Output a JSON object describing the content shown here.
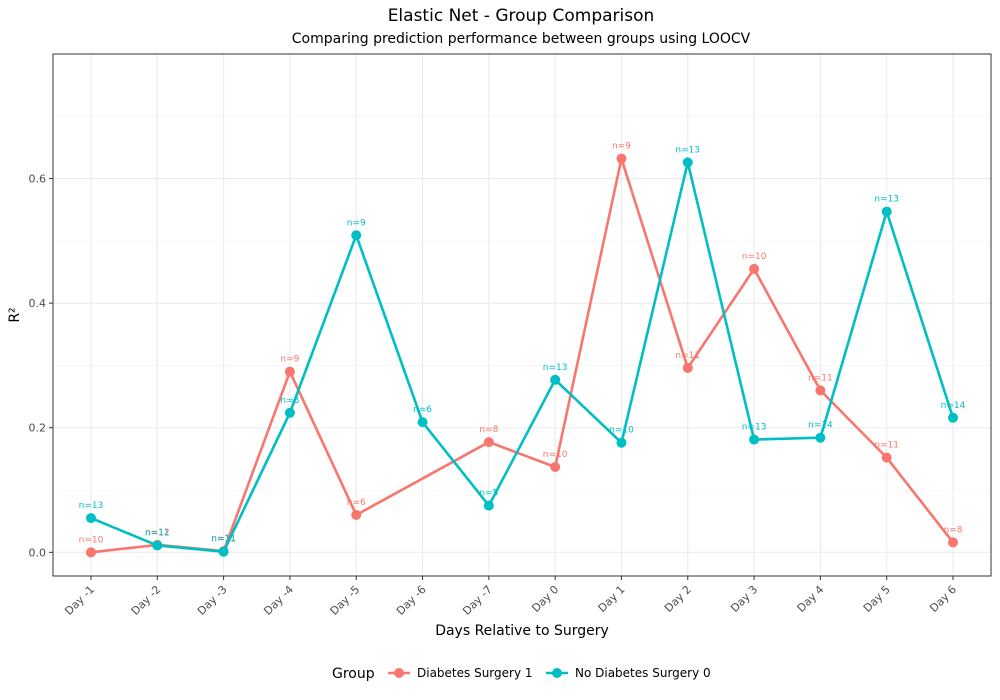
{
  "chart_data": {
    "type": "line",
    "title": "Elastic Net - Group Comparison",
    "subtitle": "Comparing prediction performance between groups using LOOCV",
    "xlabel": "Days Relative to Surgery",
    "ylabel": "R²",
    "categories": [
      "Day -1",
      "Day -2",
      "Day -3",
      "Day -4",
      "Day -5",
      "Day -6",
      "Day -7",
      "Day 0",
      "Day 1",
      "Day 2",
      "Day 3",
      "Day 4",
      "Day 5",
      "Day 6"
    ],
    "ylim": [
      -0.038,
      0.8
    ],
    "yticks": [
      0.0,
      0.2,
      0.4,
      0.6
    ],
    "ytick_labels": [
      "0.0",
      "0.2",
      "0.4",
      "0.6"
    ],
    "grid": true,
    "legend_position": "bottom",
    "legend_title": "Group",
    "series": [
      {
        "name": "Diabetes Surgery 1",
        "color": "#F8766D",
        "points": [
          {
            "x": "Day -1",
            "y": 0.0,
            "label": "n=10"
          },
          {
            "x": "Day -2",
            "y": 0.012,
            "label": "n=12"
          },
          {
            "x": "Day -3",
            "y": 0.002,
            "label": "n=11"
          },
          {
            "x": "Day -4",
            "y": 0.29,
            "label": "n=9"
          },
          {
            "x": "Day -5",
            "y": 0.06,
            "label": "n=6"
          },
          {
            "x": "Day -7",
            "y": 0.177,
            "label": "n=8"
          },
          {
            "x": "Day 0",
            "y": 0.137,
            "label": "n=10"
          },
          {
            "x": "Day 1",
            "y": 0.632,
            "label": "n=9"
          },
          {
            "x": "Day 2",
            "y": 0.296,
            "label": "n=11"
          },
          {
            "x": "Day 3",
            "y": 0.455,
            "label": "n=10"
          },
          {
            "x": "Day 4",
            "y": 0.26,
            "label": "n=11"
          },
          {
            "x": "Day 5",
            "y": 0.152,
            "label": "n=11"
          },
          {
            "x": "Day 6",
            "y": 0.016,
            "label": "n=8"
          }
        ]
      },
      {
        "name": "No Diabetes Surgery 0",
        "color": "#00BFC4",
        "points": [
          {
            "x": "Day -1",
            "y": 0.055,
            "label": "n=13"
          },
          {
            "x": "Day -2",
            "y": 0.011,
            "label": "n=11"
          },
          {
            "x": "Day -3",
            "y": 0.001,
            "label": "n=11"
          },
          {
            "x": "Day -4",
            "y": 0.224,
            "label": "n=8"
          },
          {
            "x": "Day -5",
            "y": 0.509,
            "label": "n=9"
          },
          {
            "x": "Day -6",
            "y": 0.209,
            "label": "n=6"
          },
          {
            "x": "Day -7",
            "y": 0.075,
            "label": "n=5"
          },
          {
            "x": "Day 0",
            "y": 0.277,
            "label": "n=13"
          },
          {
            "x": "Day 1",
            "y": 0.176,
            "label": "n=10"
          },
          {
            "x": "Day 2",
            "y": 0.626,
            "label": "n=13"
          },
          {
            "x": "Day 3",
            "y": 0.181,
            "label": "n=13"
          },
          {
            "x": "Day 4",
            "y": 0.184,
            "label": "n=14"
          },
          {
            "x": "Day 5",
            "y": 0.547,
            "label": "n=13"
          },
          {
            "x": "Day 6",
            "y": 0.216,
            "label": "n=14"
          }
        ]
      }
    ]
  }
}
